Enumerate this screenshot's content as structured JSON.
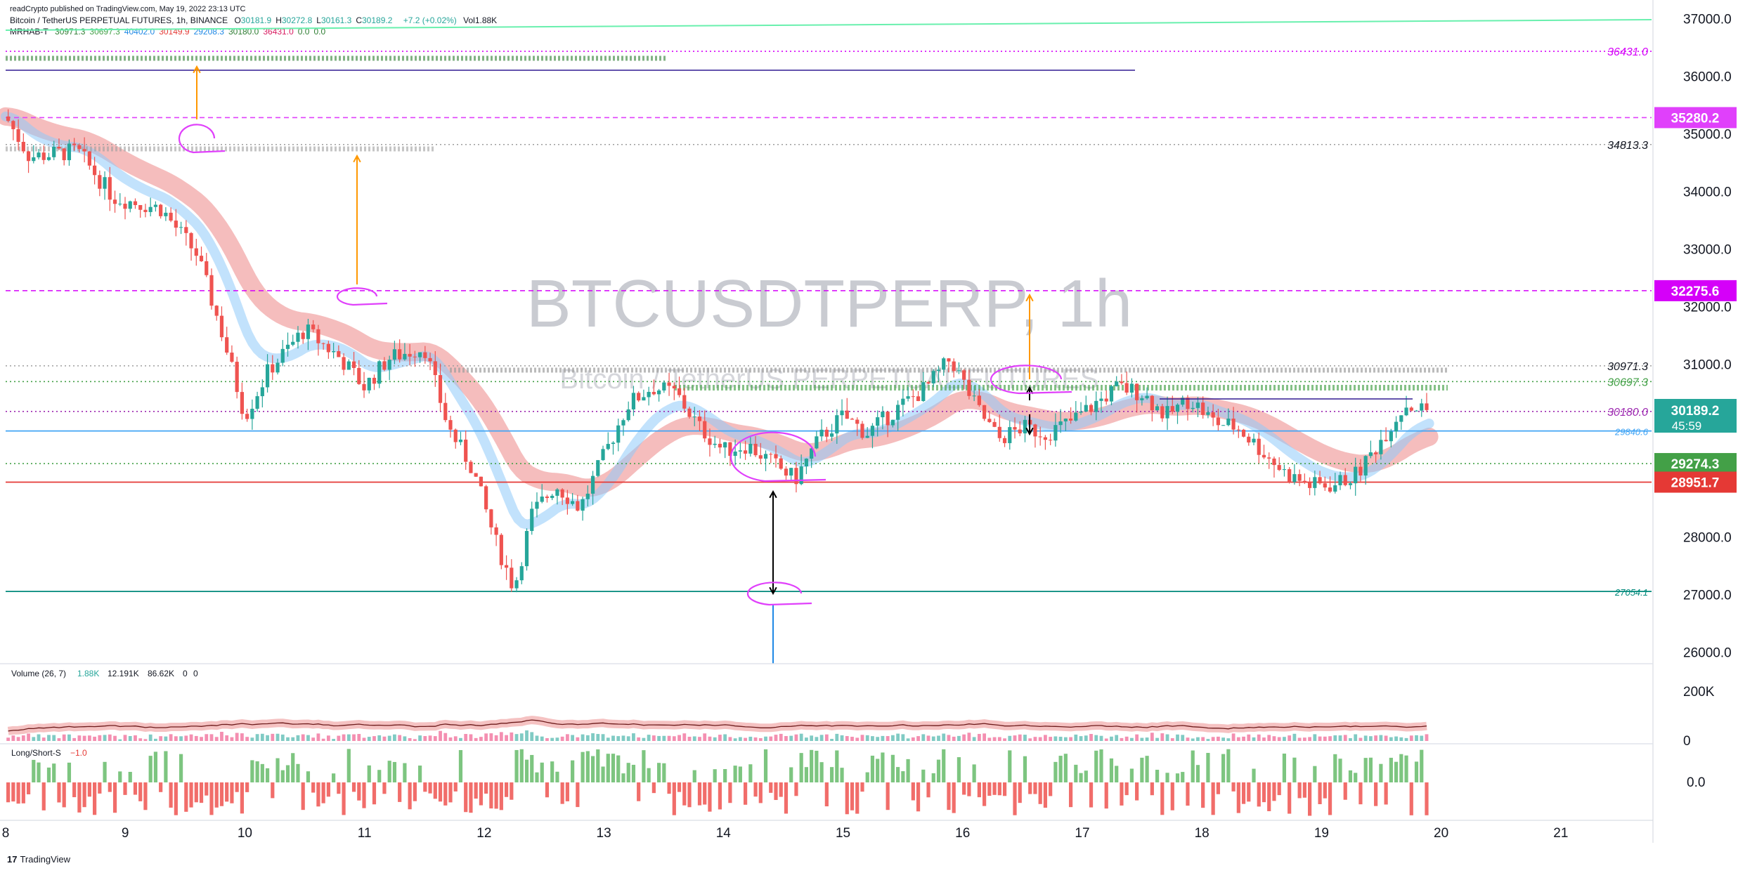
{
  "header": {
    "published": "readCrypto published on TradingView.com, May 19, 2022 23:13 UTC",
    "symbol_line": "Bitcoin / TetherUS PERPETUAL FUTURES, 1h, BINANCE",
    "ohlc": [
      {
        "label": "O",
        "value": "30181.9"
      },
      {
        "label": "H",
        "value": "30272.8"
      },
      {
        "label": "L",
        "value": "30161.3"
      },
      {
        "label": "C",
        "value": "30189.2"
      }
    ],
    "change": "+7.2 (+0.02%)",
    "vol": "Vol1.88K",
    "indicator_name": "MRHAB-T",
    "indicator_values": [
      {
        "v": "30971.3",
        "color": "#2e7d32"
      },
      {
        "v": "30697.3",
        "color": "#43a047"
      },
      {
        "v": "40402.0",
        "color": "#1e88e5"
      },
      {
        "v": "30149.9",
        "color": "#e53935"
      },
      {
        "v": "29208.3",
        "color": "#1e88e5"
      },
      {
        "v": "30180.0",
        "color": "#2e7d32"
      },
      {
        "v": "36431.0",
        "color": "#d81b60"
      },
      {
        "v": "0.0",
        "color": "#2e7d32"
      },
      {
        "v": "0.0",
        "color": "#2e7d32"
      }
    ]
  },
  "watermark": {
    "main": "BTCUSDTPERP, 1h",
    "sub": "Bitcoin / TetherUS PERPETUAL FUTURES"
  },
  "chart_data": [
    {
      "type": "candlestick",
      "ylim": [
        25800,
        37200
      ],
      "y_ticks": [
        "26000.0",
        "27000.0",
        "28000.0",
        "29000.0",
        "30000.0",
        "31000.0",
        "32000.0",
        "33000.0",
        "34000.0",
        "35000.0",
        "36000.0",
        "37000.0"
      ],
      "y_tick_values": [
        26000,
        27000,
        28000,
        29000,
        30000,
        31000,
        32000,
        33000,
        34000,
        35000,
        36000,
        37000
      ],
      "x_ticks": [
        "8",
        "9",
        "10",
        "11",
        "12",
        "13",
        "14",
        "15",
        "16",
        "17",
        "18",
        "19",
        "20",
        "21"
      ],
      "x_range_days": [
        8.0,
        21.7
      ],
      "close_path": [
        [
          8.0,
          35300
        ],
        [
          8.2,
          34600
        ],
        [
          8.6,
          34700
        ],
        [
          8.9,
          33900
        ],
        [
          9.3,
          33700
        ],
        [
          9.6,
          32900
        ],
        [
          9.8,
          31600
        ],
        [
          10.0,
          30100
        ],
        [
          10.2,
          30900
        ],
        [
          10.5,
          31600
        ],
        [
          10.8,
          31100
        ],
        [
          11.0,
          30600
        ],
        [
          11.2,
          31100
        ],
        [
          11.5,
          31300
        ],
        [
          11.7,
          29900
        ],
        [
          11.9,
          29200
        ],
        [
          12.1,
          27900
        ],
        [
          12.25,
          27100
        ],
        [
          12.4,
          28400
        ],
        [
          12.6,
          28900
        ],
        [
          12.8,
          28500
        ],
        [
          13.0,
          29400
        ],
        [
          13.2,
          30300
        ],
        [
          13.4,
          30600
        ],
        [
          13.6,
          30500
        ],
        [
          13.8,
          29900
        ],
        [
          14.0,
          29500
        ],
        [
          14.2,
          29600
        ],
        [
          14.4,
          29300
        ],
        [
          14.6,
          29000
        ],
        [
          14.8,
          29700
        ],
        [
          15.0,
          30100
        ],
        [
          15.2,
          29800
        ],
        [
          15.5,
          30300
        ],
        [
          15.7,
          30600
        ],
        [
          15.9,
          31100
        ],
        [
          16.1,
          30300
        ],
        [
          16.3,
          29700
        ],
        [
          16.5,
          29900
        ],
        [
          16.7,
          29800
        ],
        [
          16.9,
          30000
        ],
        [
          17.1,
          30300
        ],
        [
          17.3,
          30600
        ],
        [
          17.5,
          30500
        ],
        [
          17.7,
          30100
        ],
        [
          17.9,
          30400
        ],
        [
          18.1,
          30000
        ],
        [
          18.3,
          29900
        ],
        [
          18.5,
          29500
        ],
        [
          18.7,
          29100
        ],
        [
          18.9,
          28900
        ],
        [
          19.1,
          28900
        ],
        [
          19.3,
          29100
        ],
        [
          19.5,
          29700
        ],
        [
          19.7,
          30300
        ],
        [
          19.9,
          30189
        ]
      ],
      "price_levels": [
        {
          "label": "36431.0",
          "value": 36431,
          "style": "dotted",
          "color": "#d500f9"
        },
        {
          "label": "35280.2",
          "value": 35280.2,
          "style": "dashed",
          "color": "#e040fb",
          "badge": true
        },
        {
          "label": "34813.3",
          "value": 34813.3,
          "style": "dotted",
          "color": "#9e9e9e"
        },
        {
          "label": "32275.6",
          "value": 32275.6,
          "style": "dashed",
          "color": "#d500f9",
          "badge": true
        },
        {
          "label": "30971.3",
          "value": 30971.3,
          "style": "dotted",
          "color": "#9e9e9e"
        },
        {
          "label": "30697.3",
          "value": 30697.3,
          "style": "dotted",
          "color": "#43a047"
        },
        {
          "label": "30180.0",
          "value": 30180,
          "style": "dotted",
          "color": "#9c27b0"
        },
        {
          "label": "29840.6",
          "value": 29840.6,
          "style": "solid",
          "color": "#42a5f5"
        },
        {
          "label": "29274.3",
          "value": 29274.3,
          "style": "dotted",
          "color": "#43a047",
          "badge": true
        },
        {
          "label": "28951.7",
          "value": 28951.7,
          "style": "solid",
          "color": "#e53935",
          "badge": true
        },
        {
          "label": "27054.1",
          "value": 27054.1,
          "style": "solid",
          "color": "#00897b"
        }
      ],
      "last_price": {
        "value": "30189.2",
        "countdown": "45:59"
      }
    },
    {
      "type": "bar",
      "name": "Volume (26, 7)",
      "legend_values": [
        {
          "v": "1.88K",
          "color": "#26a69a"
        },
        {
          "v": "12.191K",
          "color": "#131722"
        },
        {
          "v": "86.62K",
          "color": "#131722"
        },
        {
          "v": "0",
          "color": "#131722"
        },
        {
          "v": "0",
          "color": "#131722"
        }
      ],
      "y_ticks": [
        "200K",
        "0"
      ],
      "y_tick_values": [
        200000,
        0
      ],
      "ylim": [
        0,
        300000
      ]
    },
    {
      "type": "bar",
      "name": "Long/Short-S",
      "legend_values": [
        {
          "v": "−1.0",
          "color": "#e53935"
        }
      ],
      "y_ticks": [
        "0.0"
      ],
      "y_tick_values": [
        0
      ],
      "ylim": [
        -1.6,
        1.6
      ]
    }
  ],
  "footer": {
    "brand": "TradingView"
  },
  "colors": {
    "up": "#26a69a",
    "down": "#ef5350",
    "magenta": "#e040fb",
    "orange": "#ff9800"
  }
}
